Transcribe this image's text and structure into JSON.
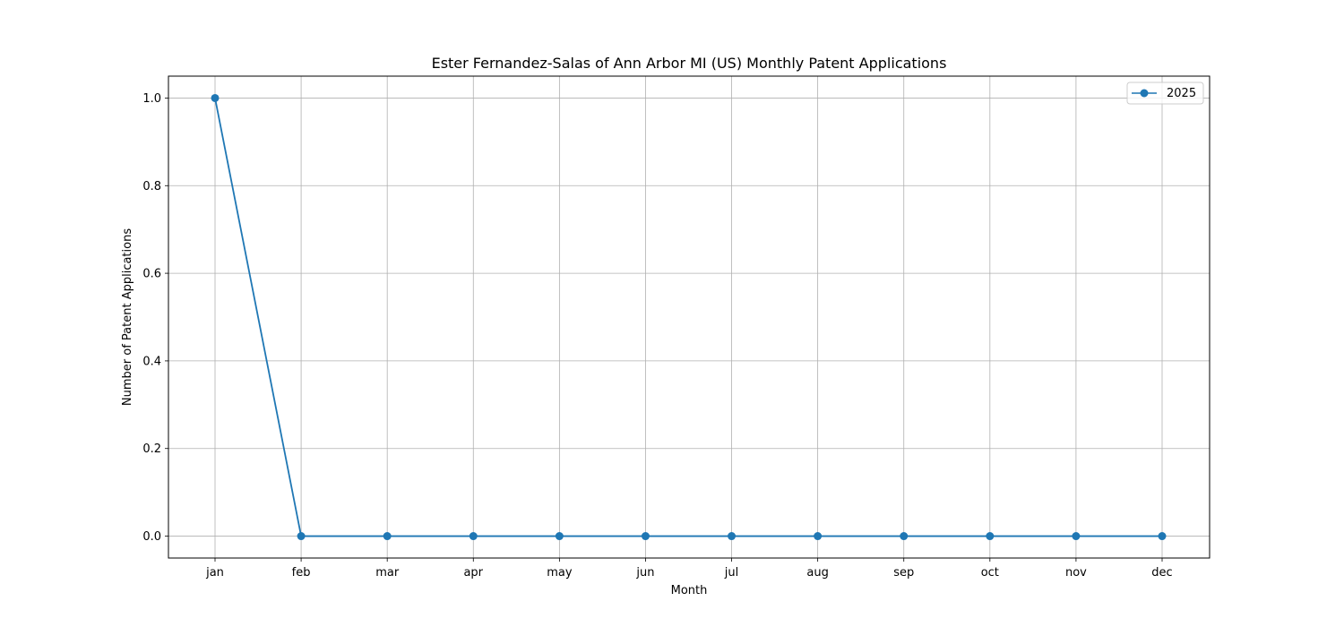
{
  "chart_data": {
    "type": "line",
    "title": "Ester Fernandez-Salas of Ann Arbor MI (US) Monthly Patent Applications",
    "xlabel": "Month",
    "ylabel": "Number of Patent Applications",
    "categories": [
      "jan",
      "feb",
      "mar",
      "apr",
      "may",
      "jun",
      "jul",
      "aug",
      "sep",
      "oct",
      "nov",
      "dec"
    ],
    "series": [
      {
        "name": "2025",
        "values": [
          1,
          0,
          0,
          0,
          0,
          0,
          0,
          0,
          0,
          0,
          0,
          0
        ],
        "color": "#1f77b4"
      }
    ],
    "ylim": [
      -0.05,
      1.05
    ],
    "yticks": [
      0.0,
      0.2,
      0.4,
      0.6,
      0.8,
      1.0
    ],
    "ytick_labels": [
      "0.0",
      "0.2",
      "0.4",
      "0.6",
      "0.8",
      "1.0"
    ],
    "grid": true,
    "legend_position": "top-right"
  }
}
